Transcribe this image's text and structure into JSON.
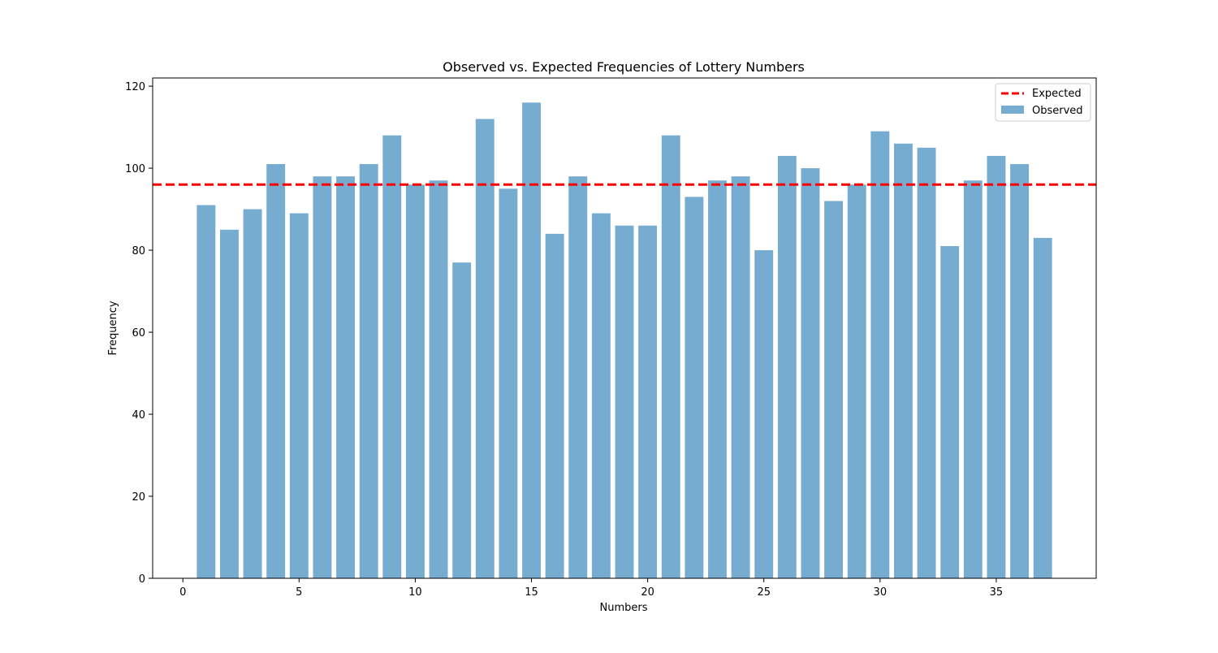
{
  "chart_data": {
    "type": "bar",
    "title": "Observed vs. Expected Frequencies of Lottery Numbers",
    "xlabel": "Numbers",
    "ylabel": "Frequency",
    "categories": [
      1,
      2,
      3,
      4,
      5,
      6,
      7,
      8,
      9,
      10,
      11,
      12,
      13,
      14,
      15,
      16,
      17,
      18,
      19,
      20,
      21,
      22,
      23,
      24,
      25,
      26,
      27,
      28,
      29,
      30,
      31,
      32,
      33,
      34,
      35,
      36,
      37
    ],
    "series": [
      {
        "name": "Observed",
        "values": [
          91,
          85,
          90,
          101,
          89,
          98,
          98,
          101,
          108,
          96,
          97,
          77,
          112,
          95,
          116,
          84,
          98,
          89,
          86,
          86,
          108,
          93,
          97,
          98,
          80,
          103,
          100,
          92,
          96,
          109,
          106,
          105,
          81,
          97,
          103,
          101,
          83
        ],
        "color": "#77acd1"
      }
    ],
    "reference_lines": [
      {
        "name": "Expected",
        "value": 96,
        "color": "#ff0000",
        "style": "dashed"
      }
    ],
    "xlim": [
      -1.3,
      39.3
    ],
    "ylim": [
      0,
      122
    ],
    "xticks": [
      0,
      5,
      10,
      15,
      20,
      25,
      30,
      35
    ],
    "yticks": [
      0,
      20,
      40,
      60,
      80,
      100,
      120
    ],
    "grid": false,
    "legend": {
      "placement": "top-right",
      "entries": [
        "Expected",
        "Observed"
      ]
    }
  }
}
